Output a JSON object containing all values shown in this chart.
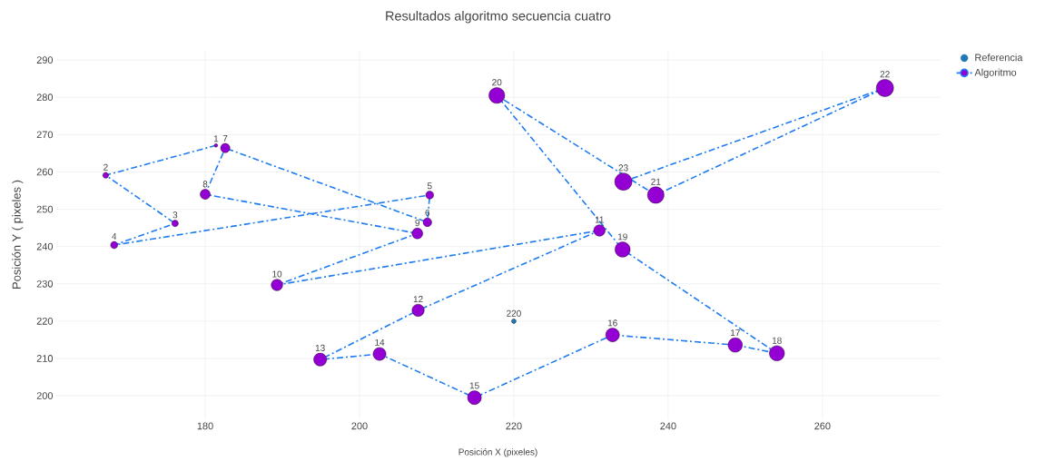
{
  "chart_data": {
    "type": "bubble",
    "title": "Resultados algoritmo secuencia cuatro",
    "xlabel": "Posición X (pixeles)",
    "ylabel": "Posición Y ( pixeles )",
    "xlim": [
      160.7,
      275.2
    ],
    "ylim": [
      193.7,
      292.7
    ],
    "xticks": [
      180,
      200,
      220,
      240,
      260
    ],
    "yticks": [
      200,
      210,
      220,
      230,
      240,
      250,
      260,
      270,
      280,
      290
    ],
    "grid": true,
    "legend": "top right",
    "marker": "circle",
    "series": [
      {
        "name": "Referencia",
        "type": "scatter",
        "color": "#1f77b4",
        "x": [
          220
        ],
        "values": [
          220
        ],
        "value_labels": [
          "220"
        ]
      },
      {
        "type": "line",
        "color": "#1e7cf0",
        "line_style": "dashdot",
        "marker": "none",
        "x": [
          181.4,
          167.1,
          176.1,
          168.2,
          209.1,
          208.8,
          182.6,
          180.0,
          207.5,
          189.3,
          231.1,
          207.6,
          194.9,
          202.6,
          214.9,
          232.8,
          248.7,
          254.1,
          234.1,
          217.8,
          238.4,
          268.1,
          234.2
        ],
        "values": [
          267.1,
          259.1,
          246.2,
          240.4,
          253.8,
          246.5,
          266.4,
          254.0,
          243.5,
          229.7,
          244.3,
          222.9,
          209.7,
          211.2,
          199.5,
          216.3,
          213.6,
          211.4,
          239.2,
          280.5,
          253.8,
          282.5,
          257.4
        ]
      },
      {
        "name": "Algoritmo",
        "color": "#9400d3",
        "x": [
          181.4,
          167.1,
          176.1,
          168.2,
          209.1,
          208.8,
          182.6,
          180.0,
          207.5,
          189.3,
          231.1,
          207.6,
          194.9,
          202.6,
          214.9,
          232.8,
          248.7,
          254.1,
          234.1,
          217.8,
          238.4,
          268.1,
          234.2
        ],
        "values": [
          267.1,
          259.1,
          246.2,
          240.4,
          253.8,
          246.5,
          266.4,
          254.0,
          243.5,
          229.7,
          244.3,
          222.9,
          209.7,
          211.2,
          199.5,
          216.3,
          213.6,
          211.4,
          239.2,
          280.5,
          253.8,
          282.5,
          257.4
        ],
        "sizes": [
          0.04,
          0.11,
          0.14,
          0.17,
          0.21,
          0.25,
          0.29,
          0.34,
          0.39,
          0.44,
          0.44,
          0.5,
          0.56,
          0.56,
          0.63,
          0.63,
          0.69,
          0.77,
          0.77,
          0.84,
          0.92,
          1,
          1
        ],
        "colors": [
          "#9400d3",
          "#9400d3",
          "#9400d3",
          "#9400d3",
          "#9400d3",
          "#9400d3",
          "#9400d3",
          "#9400d3",
          "#9400d3",
          "#9400d3",
          "#9400d3",
          "#9400d3",
          "#9400d3",
          "#9400d3",
          "#9400d3",
          "#9400d3",
          "#9400d3",
          "#9400d3",
          "#9400d3",
          "#9400d3",
          "#9400d3",
          "#9400d3",
          "#9400d3"
        ]
      }
    ],
    "annotations": [
      {
        "text": "1",
        "x": 181.4,
        "y": 267.1
      },
      {
        "text": "2",
        "x": 167.1,
        "y": 259.1
      },
      {
        "text": "3",
        "x": 176.1,
        "y": 246.2
      },
      {
        "text": "4",
        "x": 168.2,
        "y": 240.4
      },
      {
        "text": "5",
        "x": 209.1,
        "y": 253.8
      },
      {
        "text": "6",
        "x": 208.8,
        "y": 246.5
      },
      {
        "text": "7",
        "x": 182.6,
        "y": 266.4
      },
      {
        "text": "8",
        "x": 180.0,
        "y": 254.0
      },
      {
        "text": "9",
        "x": 207.5,
        "y": 243.5
      },
      {
        "text": "10",
        "x": 189.3,
        "y": 229.7
      },
      {
        "text": "11",
        "x": 231.1,
        "y": 244.3
      },
      {
        "text": "12",
        "x": 207.6,
        "y": 222.9
      },
      {
        "text": "13",
        "x": 194.9,
        "y": 209.7
      },
      {
        "text": "14",
        "x": 202.6,
        "y": 211.2
      },
      {
        "text": "15",
        "x": 214.9,
        "y": 199.5
      },
      {
        "text": "16",
        "x": 232.8,
        "y": 216.3
      },
      {
        "text": "17",
        "x": 248.7,
        "y": 213.6
      },
      {
        "text": "18",
        "x": 254.1,
        "y": 211.4
      },
      {
        "text": "19",
        "x": 234.1,
        "y": 239.2
      },
      {
        "text": "20",
        "x": 217.8,
        "y": 280.5
      },
      {
        "text": "21",
        "x": 238.4,
        "y": 253.8
      },
      {
        "text": "22",
        "x": 268.1,
        "y": 282.5
      },
      {
        "text": "23",
        "x": 234.2,
        "y": 257.4
      }
    ]
  }
}
